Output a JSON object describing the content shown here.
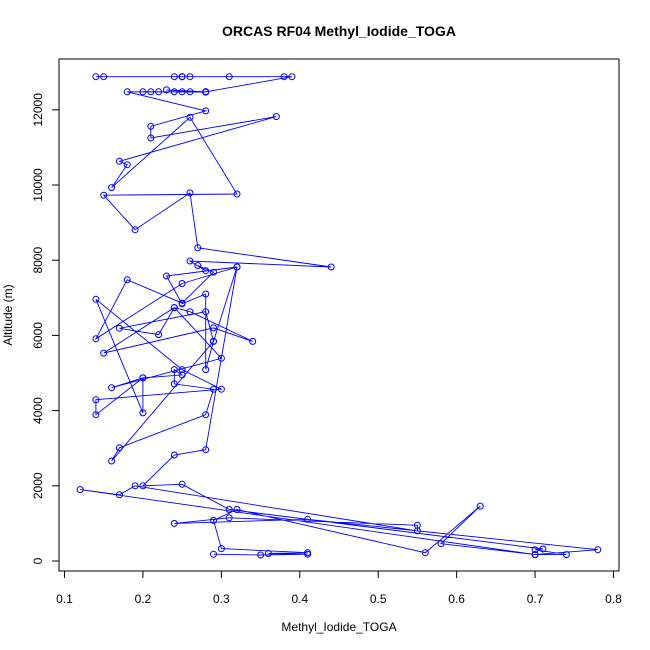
{
  "chart_data": {
    "type": "scatter",
    "title": "ORCAS RF04 Methyl_Iodide_TOGA",
    "xlabel": "Methyl_Iodide_TOGA",
    "ylabel": "Altitude (m)",
    "xlim": [
      0.1,
      0.8
    ],
    "ylim": [
      0,
      12500
    ],
    "x_ticks": [
      0.1,
      0.2,
      0.3,
      0.4,
      0.5,
      0.6,
      0.7,
      0.8
    ],
    "y_ticks": [
      0,
      2000,
      4000,
      6000,
      8000,
      10000,
      12000
    ],
    "x_tick_labels": [
      "0.1",
      "0.2",
      "0.3",
      "0.4",
      "0.5",
      "0.6",
      "0.7",
      "0.8"
    ],
    "y_tick_labels": [
      "0",
      "2000",
      "4000",
      "6000",
      "8000",
      "10000",
      "12000"
    ],
    "grid": false,
    "connected": true,
    "marker": "open-circle",
    "color": "#0000ff",
    "series": [
      {
        "x": [
          0.29,
          0.35,
          0.41,
          0.36,
          0.41,
          0.3,
          0.29,
          0.32,
          0.56,
          0.63,
          0.58,
          0.7,
          0.78,
          0.41,
          0.24,
          0.31,
          0.55,
          0.55,
          0.19,
          0.17,
          0.12,
          0.7,
          0.74,
          0.7,
          0.71,
          0.31,
          0.25,
          0.2,
          0.24,
          0.28,
          0.32,
          0.29,
          0.16,
          0.17,
          0.28,
          0.29,
          0.24,
          0.24,
          0.25,
          0.2,
          0.14,
          0.14,
          0.3,
          0.25,
          0.14,
          0.2,
          0.2,
          0.16,
          0.3,
          0.24,
          0.15,
          0.29,
          0.34,
          0.26,
          0.24,
          0.22,
          0.17,
          0.28,
          0.29,
          0.28,
          0.28,
          0.25,
          0.23,
          0.32,
          0.25,
          0.14,
          0.18,
          0.25,
          0.29,
          0.27,
          0.28,
          0.26,
          0.44,
          0.27,
          0.26,
          0.19,
          0.15,
          0.32,
          0.26,
          0.16,
          0.18,
          0.17,
          0.37,
          0.21,
          0.21,
          0.28,
          0.18,
          0.28,
          0.2,
          0.25,
          0.28,
          0.21,
          0.28,
          0.24,
          0.22,
          0.26,
          0.23,
          0.28,
          0.39,
          0.25,
          0.15,
          0.14,
          0.31,
          0.24,
          0.25,
          0.38,
          0.25,
          0.26
        ],
        "y": [
          180,
          160,
          180,
          200,
          220,
          330,
          1080,
          1370,
          220,
          1460,
          460,
          170,
          300,
          1110,
          1000,
          1150,
          950,
          800,
          2000,
          1760,
          1900,
          170,
          170,
          300,
          320,
          1370,
          2040,
          2000,
          2820,
          2960,
          7820,
          5840,
          2660,
          3010,
          3890,
          4570,
          4710,
          5090,
          4950,
          4870,
          3890,
          4290,
          4570,
          5090,
          6960,
          3940,
          4870,
          4610,
          5390,
          6740,
          5530,
          6200,
          5840,
          6630,
          6740,
          6020,
          6190,
          6630,
          5840,
          5090,
          7100,
          6840,
          7580,
          7820,
          7380,
          5910,
          7480,
          6860,
          7680,
          7860,
          7720,
          7980,
          7820,
          8330,
          9790,
          8810,
          9730,
          9760,
          11800,
          9930,
          10540,
          10630,
          11820,
          11250,
          11560,
          11970,
          12480,
          12470,
          12480,
          12480,
          12480,
          12480,
          12480,
          12480,
          12480,
          12480,
          12530,
          12480,
          12880,
          12880,
          12880,
          12880,
          12880,
          12880,
          12880,
          12880,
          12880,
          12880
        ]
      }
    ]
  }
}
